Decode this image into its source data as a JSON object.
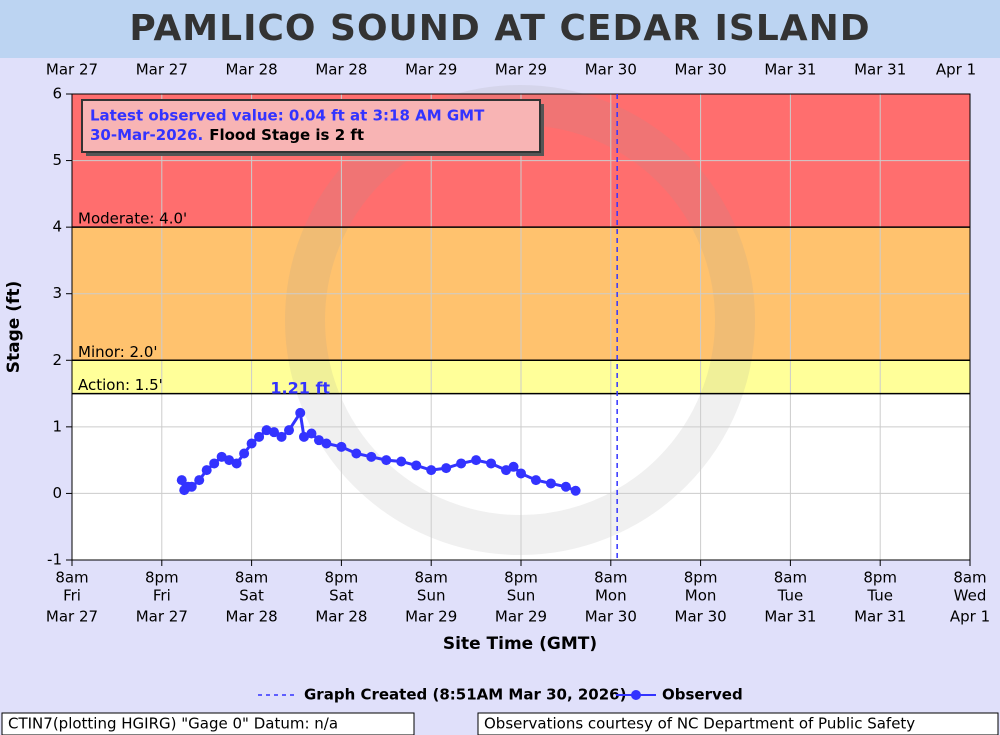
{
  "chart_data": {
    "type": "line",
    "title": "PAMLICO SOUND AT CEDAR ISLAND",
    "y_label": "Stage (ft)",
    "x_label": "Site Time (GMT)",
    "ylim": [
      -1,
      6
    ],
    "yticks": [
      -1,
      0,
      1,
      2,
      3,
      4,
      5,
      6
    ],
    "xlim": [
      "Mar 27 08:00",
      "Apr 1 08:00"
    ],
    "xticks": [
      {
        "value": "Mar 27 08:00",
        "label": [
          "8am",
          "Fri",
          "Mar 27"
        ]
      },
      {
        "value": "Mar 27 20:00",
        "label": [
          "8pm",
          "Fri",
          "Mar 27"
        ]
      },
      {
        "value": "Mar 28 08:00",
        "label": [
          "8am",
          "Sat",
          "Mar 28"
        ]
      },
      {
        "value": "Mar 28 20:00",
        "label": [
          "8pm",
          "Sat",
          "Mar 28"
        ]
      },
      {
        "value": "Mar 29 08:00",
        "label": [
          "8am",
          "Sun",
          "Mar 29"
        ]
      },
      {
        "value": "Mar 29 20:00",
        "label": [
          "8pm",
          "Sun",
          "Mar 29"
        ]
      },
      {
        "value": "Mar 30 08:00",
        "label": [
          "8am",
          "Mon",
          "Mar 30"
        ]
      },
      {
        "value": "Mar 30 20:00",
        "label": [
          "8pm",
          "Mon",
          "Mar 30"
        ]
      },
      {
        "value": "Mar 31 08:00",
        "label": [
          "8am",
          "Tue",
          "Mar 31"
        ]
      },
      {
        "value": "Mar 31 20:00",
        "label": [
          "8pm",
          "Tue",
          "Mar 31"
        ]
      },
      {
        "value": "Apr 1 08:00",
        "label": [
          "8am",
          "Wed",
          "Apr 1"
        ]
      }
    ],
    "grid": true,
    "flood_stages": [
      {
        "label": "Action: 1.5'",
        "value": 1.5,
        "color": "#ffff99"
      },
      {
        "label": "Minor: 2.0'",
        "value": 2,
        "color": "#ffc26e"
      },
      {
        "label": "Moderate: 4.0'",
        "value": 4,
        "color": "#ff6e6e"
      }
    ],
    "graph_created": {
      "x": "Mar 30 08:51",
      "label": "Graph Created (8:51AM Mar 30, 2026)",
      "color": "#3333ff"
    },
    "series": [
      {
        "name": "Observed",
        "color": "#3333ff",
        "x": [
          "Mar 27 22:40",
          "Mar 27 23:00",
          "Mar 27 23:30",
          "Mar 28 00:00",
          "Mar 28 01:00",
          "Mar 28 02:00",
          "Mar 28 03:00",
          "Mar 28 04:00",
          "Mar 28 05:00",
          "Mar 28 06:00",
          "Mar 28 07:00",
          "Mar 28 08:00",
          "Mar 28 09:00",
          "Mar 28 10:00",
          "Mar 28 11:00",
          "Mar 28 12:00",
          "Mar 28 13:00",
          "Mar 28 14:30",
          "Mar 28 15:00",
          "Mar 28 16:00",
          "Mar 28 17:00",
          "Mar 28 18:00",
          "Mar 28 20:00",
          "Mar 28 22:00",
          "Mar 29 00:00",
          "Mar 29 02:00",
          "Mar 29 04:00",
          "Mar 29 06:00",
          "Mar 29 08:00",
          "Mar 29 10:00",
          "Mar 29 12:00",
          "Mar 29 14:00",
          "Mar 29 16:00",
          "Mar 29 18:00",
          "Mar 29 19:00",
          "Mar 29 20:00",
          "Mar 29 22:00",
          "Mar 30 00:00",
          "Mar 30 02:00",
          "Mar 30 03:18"
        ],
        "values": [
          0.2,
          0.05,
          0.1,
          0.1,
          0.2,
          0.35,
          0.45,
          0.55,
          0.5,
          0.45,
          0.6,
          0.75,
          0.85,
          0.95,
          0.92,
          0.85,
          0.95,
          1.21,
          0.85,
          0.9,
          0.8,
          0.75,
          0.7,
          0.6,
          0.55,
          0.5,
          0.48,
          0.42,
          0.35,
          0.38,
          0.45,
          0.5,
          0.45,
          0.35,
          0.4,
          0.3,
          0.2,
          0.15,
          0.1,
          0.04
        ]
      }
    ],
    "annotations": [
      {
        "text": "1.21 ft",
        "x": "Mar 28 14:30",
        "y": 1.21
      }
    ],
    "latest_observed": {
      "line1": "Latest observed value: 0.04 ft at 3:18 AM GMT",
      "line2_date": "30-Mar-2026.",
      "line2_flood": "Flood Stage is 2 ft"
    },
    "footer_left": "CTIN7(plotting HGIRG) \"Gage 0\" Datum: n/a",
    "footer_right": "Observations courtesy of NC Department of Public Safety"
  }
}
